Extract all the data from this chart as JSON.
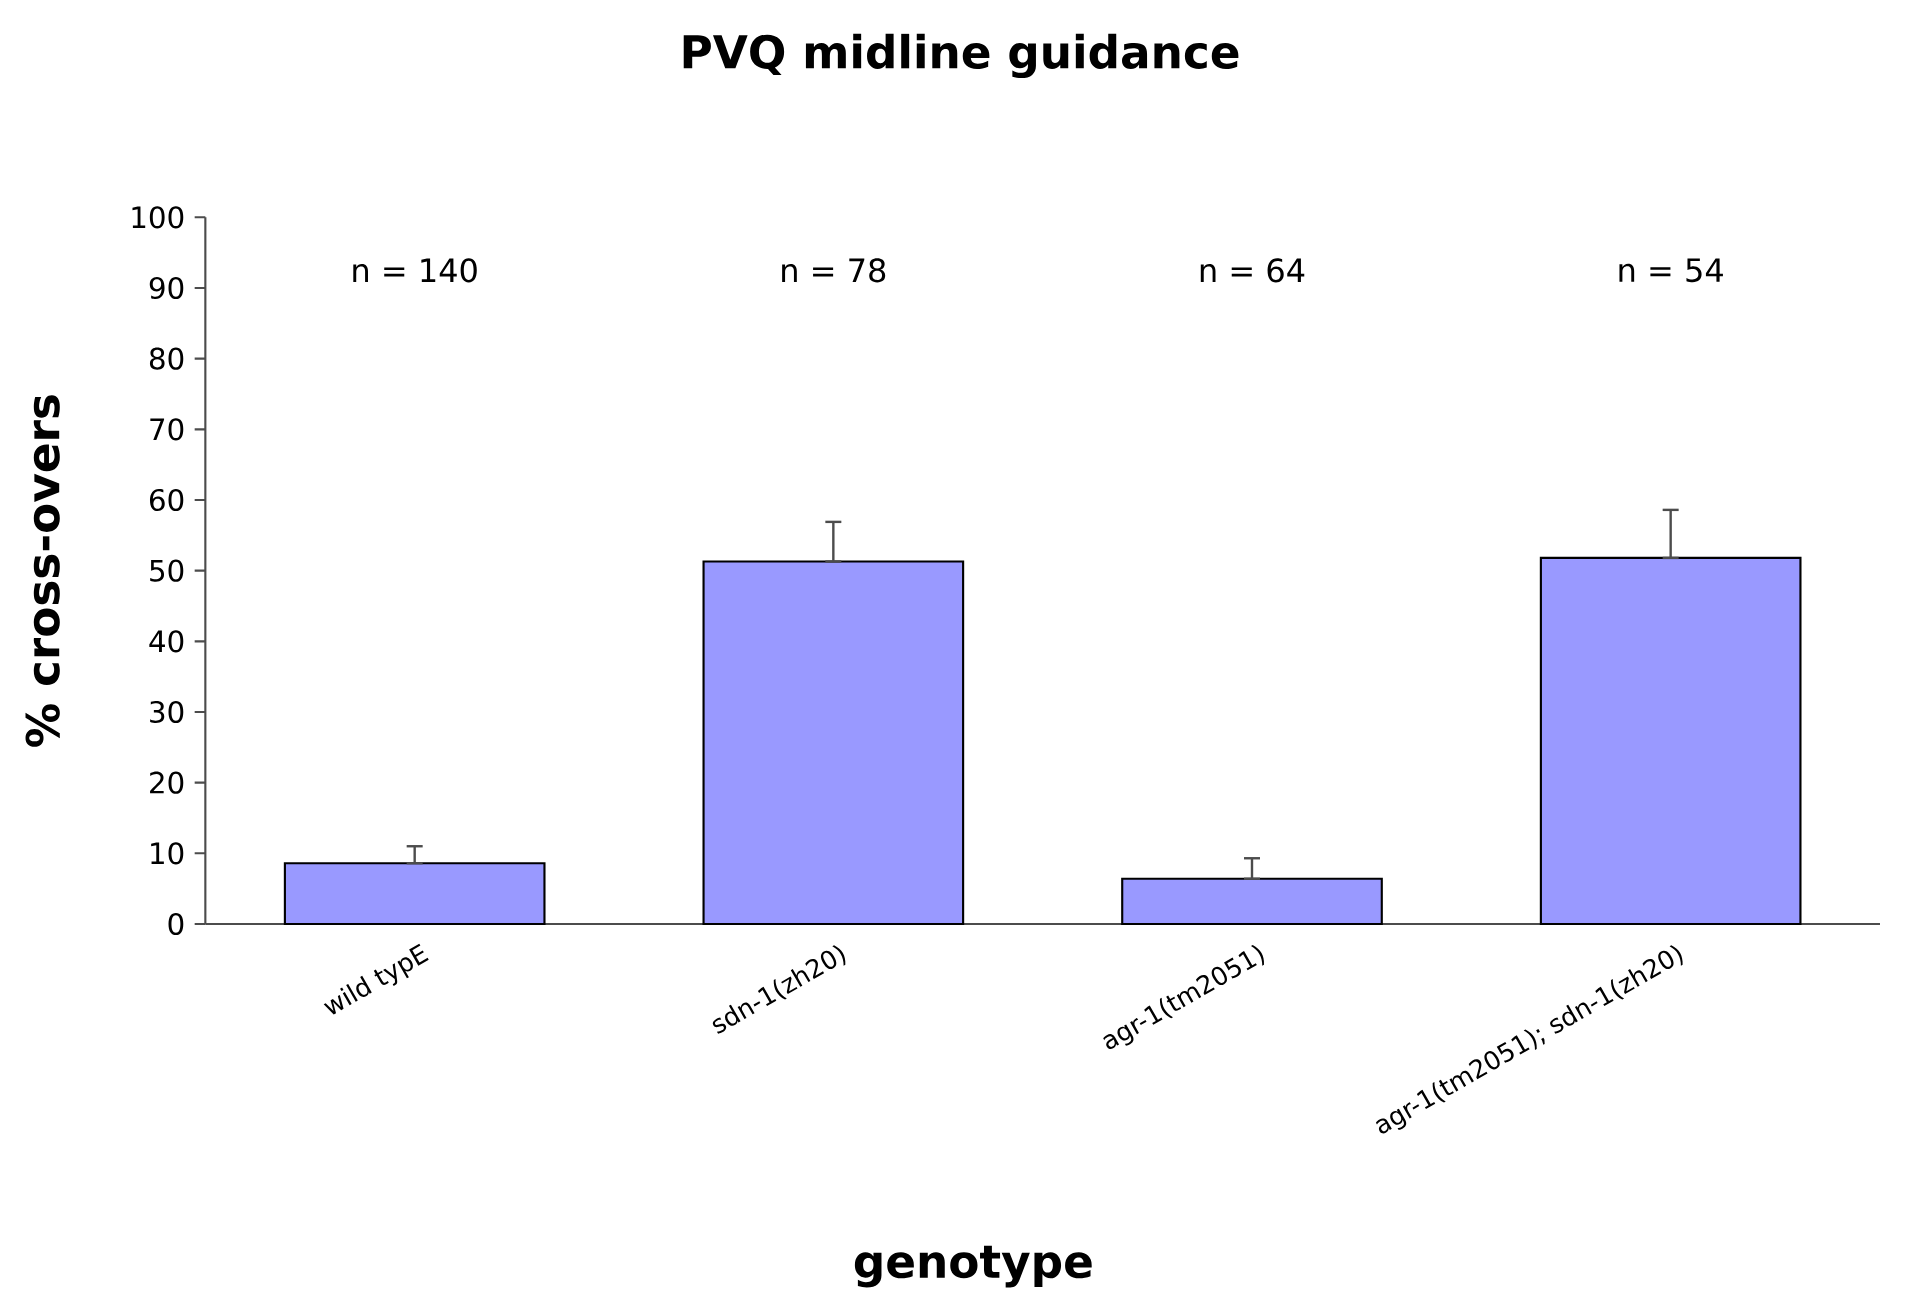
{
  "chart_data": {
    "type": "bar",
    "title": "PVQ midline guidance",
    "xlabel": "genotype",
    "ylabel": "% cross-overs",
    "categories": [
      "wild typE",
      "sdn-1(zh20)",
      "agr-1(tm2051)",
      "agr-1(tm2051); sdn-1(zh20)"
    ],
    "values": [
      8.6,
      51.3,
      6.4,
      51.8
    ],
    "errors": [
      [
        8.6,
        11.0
      ],
      [
        51.3,
        56.9
      ],
      [
        6.4,
        9.3
      ],
      [
        51.8,
        58.6
      ]
    ],
    "color": "#9999ff",
    "ylim": [
      0,
      100
    ],
    "yticks": [
      0,
      10,
      20,
      30,
      40,
      50,
      60,
      70,
      80,
      90,
      100
    ],
    "grid": false,
    "annotations": [
      "n = 140",
      "n = 78",
      "n = 64",
      "n = 54"
    ]
  }
}
